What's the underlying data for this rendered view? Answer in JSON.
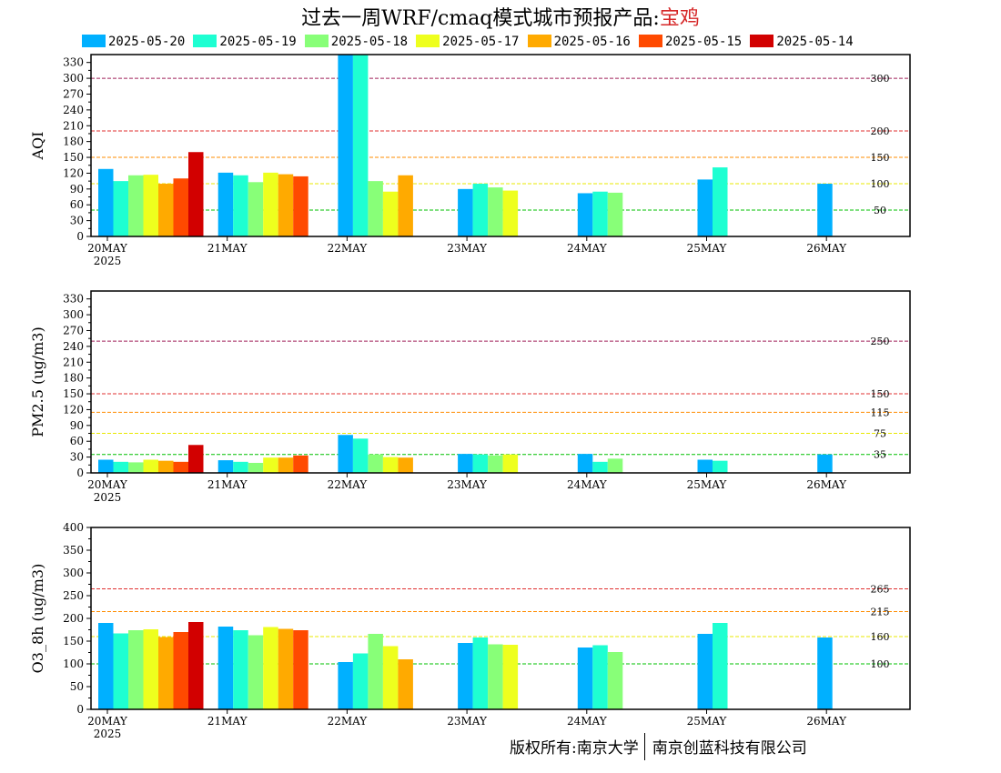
{
  "title": {
    "prefix": "过去一周WRF/cmaq模式城市预报产品:",
    "city": "宝鸡"
  },
  "legend": [
    {
      "label": "2025-05-20",
      "color": "#00b0ff"
    },
    {
      "label": "2025-05-19",
      "color": "#1effd2"
    },
    {
      "label": "2025-05-18",
      "color": "#88ff78"
    },
    {
      "label": "2025-05-17",
      "color": "#eeff1e"
    },
    {
      "label": "2025-05-16",
      "color": "#ffaa00"
    },
    {
      "label": "2025-05-15",
      "color": "#ff4a00"
    },
    {
      "label": "2025-05-14",
      "color": "#d20000"
    }
  ],
  "footer": {
    "left": "版权所有:南京大学",
    "right": "南京创蓝科技有限公司"
  },
  "chart_data": [
    {
      "type": "bar",
      "ylabel": "AQI",
      "ylim": [
        0,
        345
      ],
      "yticks": [
        0,
        30,
        60,
        90,
        120,
        150,
        180,
        210,
        240,
        270,
        300,
        330
      ],
      "categories": [
        "20MAY",
        "21MAY",
        "22MAY",
        "23MAY",
        "24MAY",
        "25MAY",
        "26MAY"
      ],
      "year_label": "2025",
      "thresholds": [
        {
          "value": 300,
          "label": "300",
          "color": "#a0205a"
        },
        {
          "value": 200,
          "label": "200",
          "color": "#e03030"
        },
        {
          "value": 150,
          "label": "150",
          "color": "#ff8c00"
        },
        {
          "value": 100,
          "label": "100",
          "color": "#e8e800"
        },
        {
          "value": 50,
          "label": "50",
          "color": "#00c000"
        }
      ],
      "series": [
        {
          "values": [
            128,
            121,
            350,
            90,
            82,
            108,
            100
          ]
        },
        {
          "values": [
            105,
            116,
            350,
            100,
            85,
            131,
            null
          ]
        },
        {
          "values": [
            116,
            103,
            105,
            93,
            83,
            null,
            null
          ]
        },
        {
          "values": [
            117,
            121,
            85,
            87,
            null,
            null,
            null
          ]
        },
        {
          "values": [
            100,
            118,
            116,
            null,
            null,
            null,
            null
          ]
        },
        {
          "values": [
            110,
            114,
            null,
            null,
            null,
            null,
            null
          ]
        },
        {
          "values": [
            160,
            null,
            null,
            null,
            null,
            null,
            null
          ]
        }
      ]
    },
    {
      "type": "bar",
      "ylabel": "PM2.5 (ug/m3)",
      "ylim": [
        0,
        345
      ],
      "yticks": [
        0,
        30,
        60,
        90,
        120,
        150,
        180,
        210,
        240,
        270,
        300,
        330
      ],
      "categories": [
        "20MAY",
        "21MAY",
        "22MAY",
        "23MAY",
        "24MAY",
        "25MAY",
        "26MAY"
      ],
      "year_label": "2025",
      "thresholds": [
        {
          "value": 250,
          "label": "250",
          "color": "#a0205a"
        },
        {
          "value": 150,
          "label": "150",
          "color": "#e03030"
        },
        {
          "value": 115,
          "label": "115",
          "color": "#ff8c00"
        },
        {
          "value": 75,
          "label": "75",
          "color": "#e8e800"
        },
        {
          "value": 35,
          "label": "35",
          "color": "#00c000"
        }
      ],
      "series": [
        {
          "values": [
            25,
            24,
            72,
            36,
            36,
            25,
            35
          ]
        },
        {
          "values": [
            21,
            21,
            65,
            35,
            21,
            23,
            null
          ]
        },
        {
          "values": [
            20,
            19,
            35,
            33,
            27,
            null,
            null
          ]
        },
        {
          "values": [
            25,
            29,
            30,
            35,
            null,
            null,
            null
          ]
        },
        {
          "values": [
            23,
            29,
            29,
            null,
            null,
            null,
            null
          ]
        },
        {
          "values": [
            21,
            33,
            null,
            null,
            null,
            null,
            null
          ]
        },
        {
          "values": [
            53,
            null,
            null,
            null,
            null,
            null,
            null
          ]
        }
      ]
    },
    {
      "type": "bar",
      "ylabel": "O3_8h (ug/m3)",
      "ylim": [
        0,
        400
      ],
      "yticks": [
        0,
        50,
        100,
        150,
        200,
        250,
        300,
        350,
        400
      ],
      "categories": [
        "20MAY",
        "21MAY",
        "22MAY",
        "23MAY",
        "24MAY",
        "25MAY",
        "26MAY"
      ],
      "year_label": "2025",
      "thresholds": [
        {
          "value": 265,
          "label": "265",
          "color": "#e03030"
        },
        {
          "value": 215,
          "label": "215",
          "color": "#ff8c00"
        },
        {
          "value": 160,
          "label": "160",
          "color": "#e8e800"
        },
        {
          "value": 100,
          "label": "100",
          "color": "#00c000"
        }
      ],
      "series": [
        {
          "values": [
            190,
            182,
            104,
            146,
            136,
            166,
            158
          ]
        },
        {
          "values": [
            167,
            174,
            123,
            158,
            141,
            190,
            null
          ]
        },
        {
          "values": [
            174,
            163,
            166,
            143,
            126,
            null,
            null
          ]
        },
        {
          "values": [
            176,
            181,
            139,
            142,
            null,
            null,
            null
          ]
        },
        {
          "values": [
            159,
            177,
            110,
            null,
            null,
            null,
            null
          ]
        },
        {
          "values": [
            170,
            174,
            null,
            null,
            null,
            null,
            null
          ]
        },
        {
          "values": [
            192,
            null,
            null,
            null,
            null,
            null,
            null
          ]
        }
      ]
    }
  ]
}
